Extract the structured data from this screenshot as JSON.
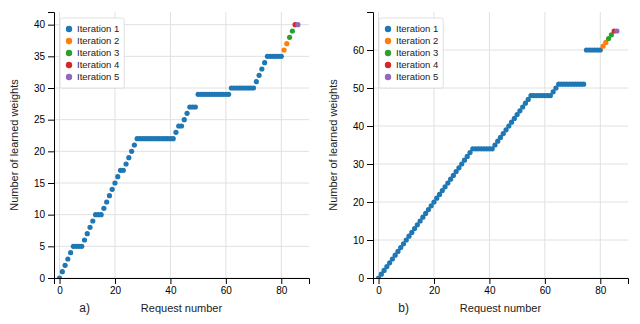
{
  "chart_data": [
    {
      "type": "scatter",
      "title": "a)",
      "x_label": "Request number",
      "y_label": "Number of learned weights",
      "xlim": [
        -2,
        90
      ],
      "ylim": [
        0,
        42
      ],
      "xticks": [
        0,
        20,
        40,
        60,
        80
      ],
      "yticks": [
        0,
        5,
        10,
        15,
        20,
        25,
        30,
        35,
        40
      ],
      "grid": true,
      "legend": "top-left",
      "series": [
        {
          "name": "Iteration 1",
          "color": "#1f77b4",
          "x": [
            0,
            1,
            2,
            3,
            4,
            5,
            6,
            7,
            8,
            9,
            10,
            11,
            12,
            13,
            14,
            15,
            16,
            17,
            18,
            19,
            20,
            21,
            22,
            23,
            24,
            25,
            26,
            27,
            28,
            29,
            30,
            31,
            32,
            33,
            34,
            35,
            36,
            37,
            38,
            39,
            40,
            41,
            42,
            43,
            44,
            45,
            46,
            47,
            48,
            49,
            50,
            51,
            52,
            53,
            54,
            55,
            56,
            57,
            58,
            59,
            60,
            61,
            62,
            63,
            64,
            65,
            66,
            67,
            68,
            69,
            70,
            71,
            72,
            73,
            74,
            75,
            76,
            77,
            78,
            79,
            80
          ],
          "values": [
            0,
            1,
            2,
            3,
            4,
            5,
            5,
            5,
            5,
            6,
            7,
            8,
            9,
            10,
            10,
            10,
            11,
            12,
            13,
            14,
            15,
            16,
            17,
            17,
            18,
            19,
            20,
            21,
            22,
            22,
            22,
            22,
            22,
            22,
            22,
            22,
            22,
            22,
            22,
            22,
            22,
            22,
            23,
            24,
            24,
            25,
            26,
            27,
            27,
            27,
            29,
            29,
            29,
            29,
            29,
            29,
            29,
            29,
            29,
            29,
            29,
            29,
            30,
            30,
            30,
            30,
            30,
            30,
            30,
            30,
            30,
            31,
            32,
            33,
            34,
            35,
            35,
            35,
            35,
            35,
            35
          ]
        },
        {
          "name": "Iteration 2",
          "color": "#ff7f0e",
          "x": [
            81,
            82
          ],
          "values": [
            36,
            37
          ]
        },
        {
          "name": "Iteration 3",
          "color": "#2ca02c",
          "x": [
            83,
            84
          ],
          "values": [
            38,
            39
          ]
        },
        {
          "name": "Iteration 4",
          "color": "#d62728",
          "x": [
            85
          ],
          "values": [
            40
          ]
        },
        {
          "name": "Iteration 5",
          "color": "#9467bd",
          "x": [
            86
          ],
          "values": [
            40
          ]
        }
      ]
    },
    {
      "type": "scatter",
      "title": "b)",
      "x_label": "Request number",
      "y_label": "Number of learned weights",
      "xlim": [
        -2,
        90
      ],
      "ylim": [
        0,
        70
      ],
      "xticks": [
        0,
        20,
        40,
        60,
        80
      ],
      "yticks": [
        0,
        10,
        20,
        30,
        40,
        50,
        60
      ],
      "grid": true,
      "legend": "top-left",
      "series": [
        {
          "name": "Iteration 1",
          "color": "#1f77b4",
          "x": [
            0,
            1,
            2,
            3,
            4,
            5,
            6,
            7,
            8,
            9,
            10,
            11,
            12,
            13,
            14,
            15,
            16,
            17,
            18,
            19,
            20,
            21,
            22,
            23,
            24,
            25,
            26,
            27,
            28,
            29,
            30,
            31,
            32,
            33,
            34,
            35,
            36,
            37,
            38,
            39,
            40,
            41,
            42,
            43,
            44,
            45,
            46,
            47,
            48,
            49,
            50,
            51,
            52,
            53,
            54,
            55,
            56,
            57,
            58,
            59,
            60,
            61,
            62,
            63,
            64,
            65,
            66,
            67,
            68,
            69,
            70,
            71,
            72,
            73,
            74,
            75,
            76,
            77,
            78,
            79,
            80
          ],
          "values": [
            0,
            1,
            2,
            3,
            4,
            5,
            6,
            7,
            8,
            9,
            10,
            11,
            12,
            13,
            14,
            15,
            16,
            17,
            18,
            19,
            20,
            21,
            22,
            23,
            24,
            25,
            26,
            27,
            28,
            29,
            30,
            31,
            32,
            33,
            34,
            34,
            34,
            34,
            34,
            34,
            34,
            34,
            35,
            36,
            37,
            38,
            39,
            40,
            41,
            42,
            43,
            44,
            45,
            46,
            47,
            48,
            48,
            48,
            48,
            48,
            48,
            48,
            48,
            49,
            50,
            51,
            51,
            51,
            51,
            51,
            51,
            51,
            51,
            51,
            51,
            60,
            60,
            60,
            60,
            60,
            60
          ]
        },
        {
          "name": "Iteration 2",
          "color": "#ff7f0e",
          "x": [
            81,
            82
          ],
          "values": [
            61,
            62
          ]
        },
        {
          "name": "Iteration 3",
          "color": "#2ca02c",
          "x": [
            83,
            84
          ],
          "values": [
            63,
            64
          ]
        },
        {
          "name": "Iteration 4",
          "color": "#d62728",
          "x": [
            85
          ],
          "values": [
            65
          ]
        },
        {
          "name": "Iteration 5",
          "color": "#9467bd",
          "x": [
            86
          ],
          "values": [
            65
          ]
        }
      ]
    }
  ]
}
